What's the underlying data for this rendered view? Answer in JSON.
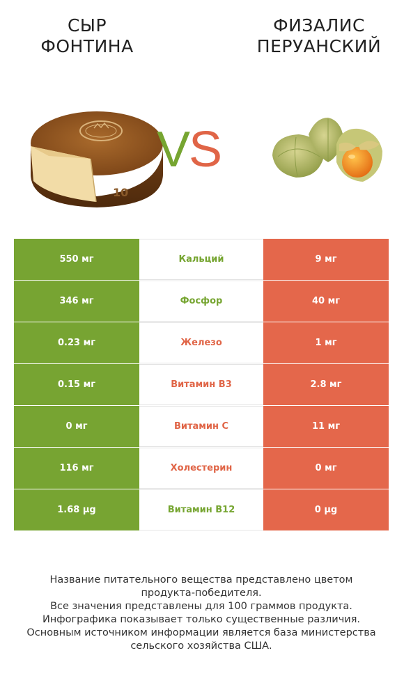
{
  "left_product": {
    "title_line1": "СЫР",
    "title_line2": "ФОНТИНА",
    "image": "fontina-cheese-wheel"
  },
  "right_product": {
    "title_line1": "ФИЗАЛИС",
    "title_line2": "ПЕРУАНСКИЙ",
    "image": "physalis-berries"
  },
  "vs": {
    "v": "V",
    "s": "S"
  },
  "colors": {
    "left": "#77a432",
    "right": "#e4674b"
  },
  "rows": [
    {
      "left": "550 мг",
      "nutrient": "Кальций",
      "right": "9 мг",
      "winner": "left"
    },
    {
      "left": "346 мг",
      "nutrient": "Фосфор",
      "right": "40 мг",
      "winner": "left"
    },
    {
      "left": "0.23 мг",
      "nutrient": "Железо",
      "right": "1 мг",
      "winner": "right"
    },
    {
      "left": "0.15 мг",
      "nutrient": "Витамин B3",
      "right": "2.8 мг",
      "winner": "right"
    },
    {
      "left": "0 мг",
      "nutrient": "Витамин C",
      "right": "11 мг",
      "winner": "right"
    },
    {
      "left": "116 мг",
      "nutrient": "Холестерин",
      "right": "0 мг",
      "winner": "right"
    },
    {
      "left": "1.68 µg",
      "nutrient": "Витамин B12",
      "right": "0 µg",
      "winner": "left"
    }
  ],
  "footer": {
    "line1": "Название питательного вещества представлено цветом",
    "line2": "продукта-победителя.",
    "line3": "Все значения представлены для 100 граммов продукта.",
    "line4": "Инфографика показывает только существенные различия.",
    "line5": "Основным источником информации является база министерства",
    "line6": "сельского хозяйства США."
  }
}
